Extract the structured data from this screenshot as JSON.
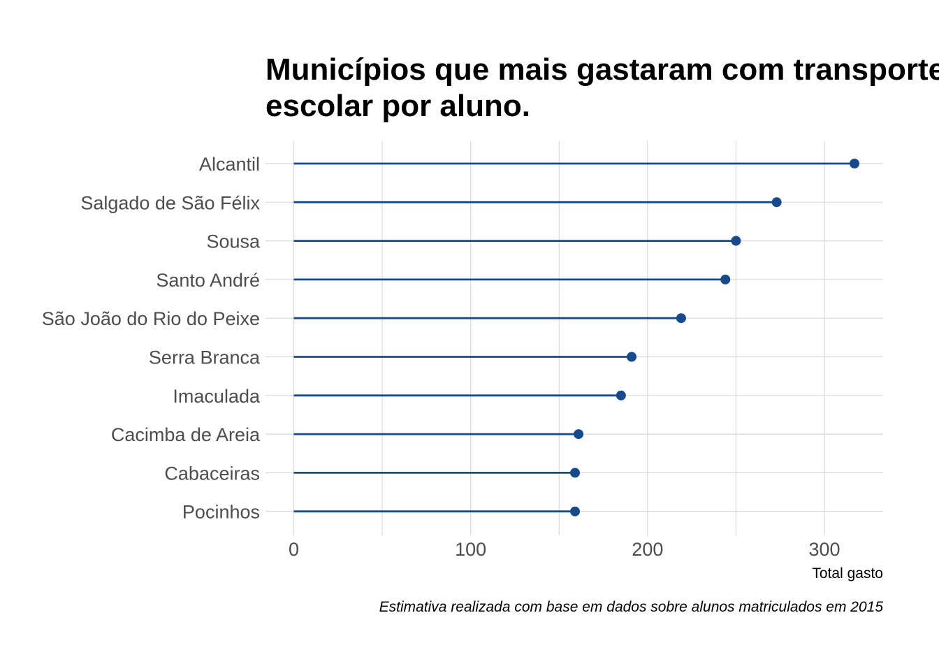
{
  "chart_data": {
    "type": "lollipop",
    "title_lines": [
      "Municípios que mais gastaram com transporte",
      "escolar por aluno."
    ],
    "xlabel": "Total gasto",
    "ylabel": "",
    "caption": "Estimativa realizada com base em dados sobre alunos matriculados em 2015",
    "xlim": [
      0,
      332
    ],
    "xticks": [
      0,
      100,
      200,
      300
    ],
    "x_minor_ticks": [
      50,
      150,
      250
    ],
    "grid": true,
    "categories": [
      "Alcantil",
      "Salgado de São Félix",
      "Sousa",
      "Santo André",
      "São João do Rio do Peixe",
      "Serra Branca",
      "Imaculada",
      "Cacimba de Areia",
      "Cabaceiras",
      "Pocinhos"
    ],
    "values": [
      317,
      273,
      250,
      244,
      219,
      191,
      185,
      161,
      159,
      159
    ],
    "colors": {
      "series": "#174a8b",
      "grid": "#d9d9d9"
    }
  }
}
